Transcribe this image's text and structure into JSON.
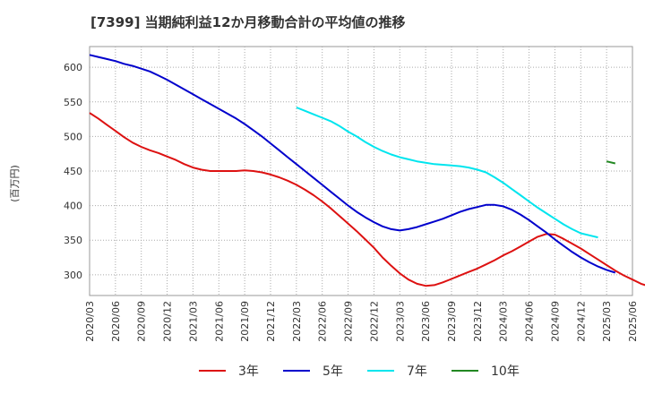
{
  "chart_data": {
    "type": "line",
    "title": "[7399]  当期純利益12か月移動合計の平均値の推移",
    "ylabel": "(百万円)",
    "xlabel": "",
    "ylim": [
      270,
      630
    ],
    "yticks": [
      300,
      350,
      400,
      450,
      500,
      550,
      600
    ],
    "x_tick_labels": [
      "2020/03",
      "2020/06",
      "2020/09",
      "2020/12",
      "2021/03",
      "2021/06",
      "2021/09",
      "2021/12",
      "2022/03",
      "2022/06",
      "2022/09",
      "2022/12",
      "2023/03",
      "2023/06",
      "2023/09",
      "2023/12",
      "2024/03",
      "2024/06",
      "2024/09",
      "2024/12",
      "2025/03",
      "2025/06"
    ],
    "grid": true,
    "legend_position": "bottom",
    "series": [
      {
        "name": "3年",
        "color": "#dd1111",
        "start_index": 0,
        "values": [
          534,
          526,
          517,
          508,
          499,
          491,
          485,
          480,
          476,
          471,
          466,
          460,
          455,
          452,
          450,
          450,
          450,
          450,
          451,
          450,
          448,
          445,
          441,
          436,
          430,
          423,
          415,
          406,
          396,
          385,
          374,
          363,
          351,
          339,
          325,
          313,
          302,
          293,
          287,
          284,
          285,
          289,
          294,
          299,
          304,
          309,
          315,
          321,
          328,
          334,
          341,
          348,
          355,
          359,
          358,
          352,
          345,
          338,
          330,
          322,
          314,
          306,
          299,
          293,
          287,
          283,
          281,
          281,
          282
        ]
      },
      {
        "name": "5年",
        "color": "#0000cc",
        "start_index": 0,
        "values": [
          618,
          615,
          612,
          609,
          605,
          602,
          598,
          594,
          588,
          582,
          575,
          568,
          561,
          554,
          547,
          540,
          533,
          526,
          518,
          509,
          500,
          490,
          480,
          470,
          460,
          450,
          440,
          430,
          420,
          410,
          400,
          391,
          383,
          376,
          370,
          366,
          364,
          366,
          369,
          373,
          377,
          381,
          386,
          391,
          395,
          398,
          401,
          401,
          399,
          394,
          387,
          379,
          370,
          361,
          351,
          342,
          333,
          325,
          318,
          312,
          307,
          303
        ]
      },
      {
        "name": "7年",
        "color": "#00e5ee",
        "start_index": 24,
        "values": [
          542,
          537,
          532,
          527,
          522,
          515,
          507,
          500,
          492,
          485,
          479,
          474,
          470,
          467,
          464,
          462,
          460,
          459,
          458,
          457,
          455,
          452,
          448,
          441,
          433,
          424,
          415,
          406,
          397,
          389,
          381,
          373,
          366,
          360,
          357,
          354
        ]
      },
      {
        "name": "10年",
        "color": "#228822",
        "start_index": 60,
        "values": [
          464,
          461
        ]
      }
    ]
  }
}
